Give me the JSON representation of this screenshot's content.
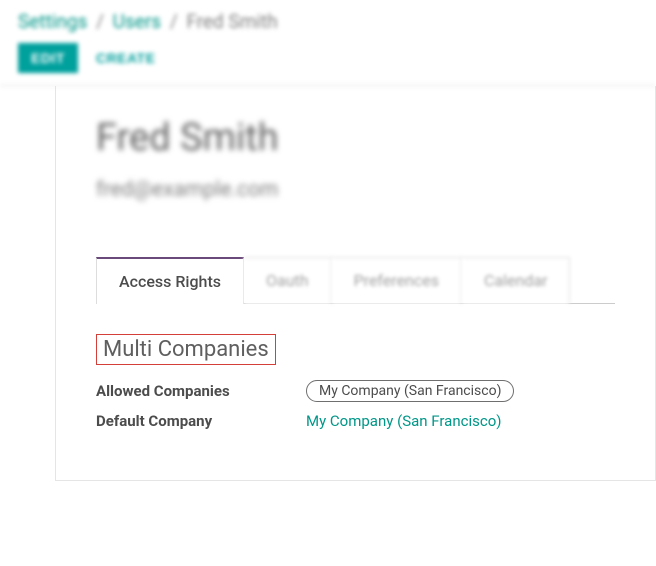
{
  "breadcrumb": {
    "seg1": "Settings",
    "seg2": "Users",
    "seg3": "Fred Smith",
    "sep": "/"
  },
  "toolbar": {
    "edit_label": "EDIT",
    "create_label": "CREATE"
  },
  "user": {
    "name": "Fred Smith",
    "email": "fred@example.com"
  },
  "tabs": {
    "access_rights": "Access Rights",
    "oauth": "Oauth",
    "preferences": "Preferences",
    "calendar": "Calendar"
  },
  "section": {
    "title": "Multi Companies",
    "allowed_label": "Allowed Companies",
    "allowed_value": "My Company (San Francisco)",
    "default_label": "Default Company",
    "default_value": "My Company (San Francisco)"
  },
  "colors": {
    "accent": "#00a09d",
    "highlight_border": "#d43f3a",
    "tab_active_border": "#6a4a7a",
    "text_primary": "#4c4c4c",
    "text_muted": "#808080",
    "link": "#009688"
  }
}
